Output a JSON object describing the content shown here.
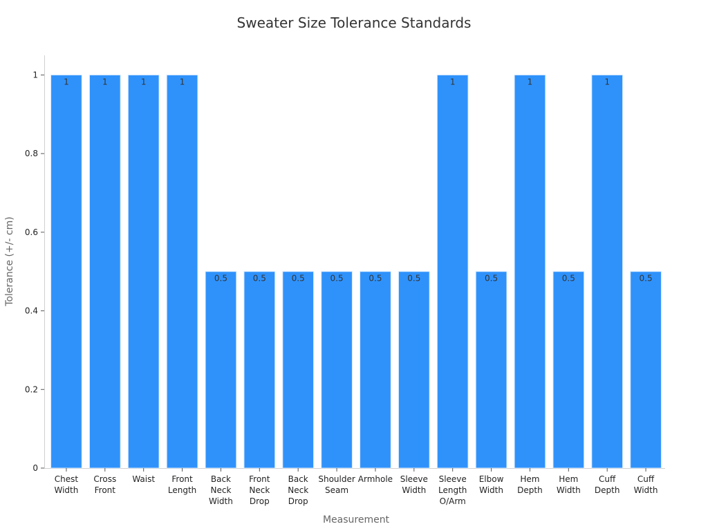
{
  "chart_data": {
    "type": "bar",
    "title": "Sweater Size Tolerance Standards",
    "xlabel": "Measurement",
    "ylabel": "Tolerance (+/- cm)",
    "ylim": [
      0,
      1.05
    ],
    "yticks": [
      0,
      0.2,
      0.4,
      0.6,
      0.8,
      1
    ],
    "ytick_labels": [
      "0",
      "0.2",
      "0.4",
      "0.6",
      "0.8",
      "1"
    ],
    "categories": [
      [
        "Chest",
        "Width"
      ],
      [
        "Cross",
        "Front"
      ],
      [
        "Waist"
      ],
      [
        "Front",
        "Length"
      ],
      [
        "Back",
        "Neck",
        "Width"
      ],
      [
        "Front",
        "Neck",
        "Drop"
      ],
      [
        "Back",
        "Neck",
        "Drop"
      ],
      [
        "Shoulder",
        "Seam"
      ],
      [
        "Armhole"
      ],
      [
        "Sleeve",
        "Width"
      ],
      [
        "Sleeve",
        "Length",
        "O/Arm"
      ],
      [
        "Elbow",
        "Width"
      ],
      [
        "Hem",
        "Depth"
      ],
      [
        "Hem",
        "Width"
      ],
      [
        "Cuff",
        "Depth"
      ],
      [
        "Cuff",
        "Width"
      ]
    ],
    "values": [
      1,
      1,
      1,
      1,
      0.5,
      0.5,
      0.5,
      0.5,
      0.5,
      0.5,
      1,
      0.5,
      1,
      0.5,
      1,
      0.5
    ],
    "value_labels": [
      "1",
      "1",
      "1",
      "1",
      "0.5",
      "0.5",
      "0.5",
      "0.5",
      "0.5",
      "0.5",
      "1",
      "0.5",
      "1",
      "0.5",
      "1",
      "0.5"
    ],
    "bar_color": "#2f92fb",
    "bar_edge_color": "#d6e9fe",
    "axis_color": "#d0d0d0",
    "grid": false,
    "legend": "none"
  }
}
